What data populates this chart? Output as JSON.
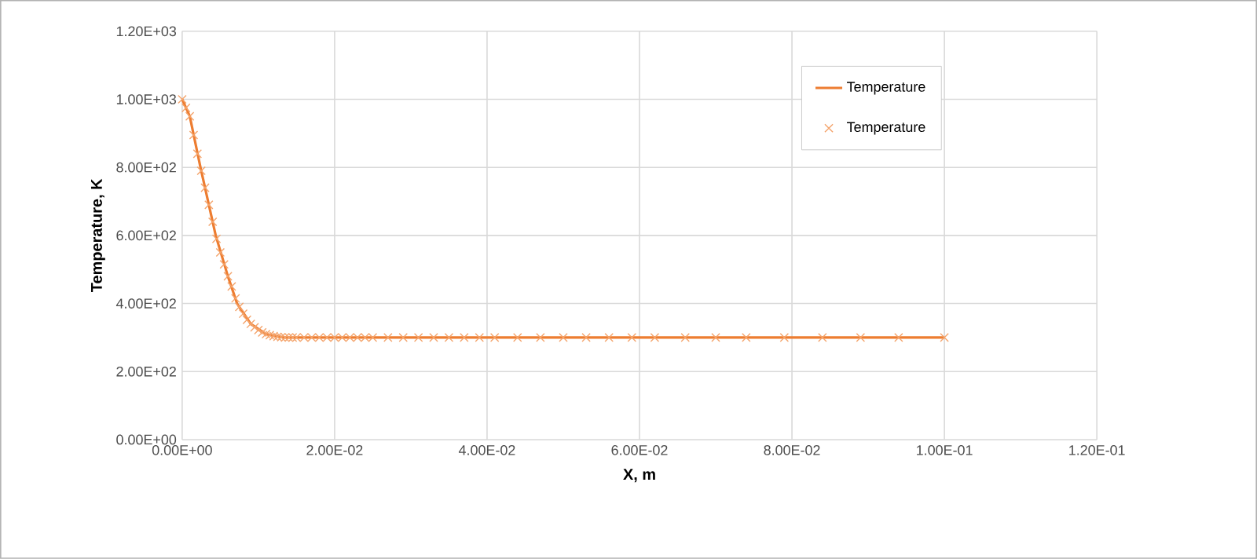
{
  "chart_data": {
    "type": "line",
    "xlabel": "X, m",
    "ylabel": "Temperature, K",
    "xlim": [
      0,
      0.12
    ],
    "ylim": [
      0,
      1200
    ],
    "xticks": [
      {
        "value": 0,
        "label": "0.00E+00"
      },
      {
        "value": 0.02,
        "label": "2.00E-02"
      },
      {
        "value": 0.04,
        "label": "4.00E-02"
      },
      {
        "value": 0.06,
        "label": "6.00E-02"
      },
      {
        "value": 0.08,
        "label": "8.00E-02"
      },
      {
        "value": 0.1,
        "label": "1.00E-01"
      },
      {
        "value": 0.12,
        "label": "1.20E-01"
      }
    ],
    "yticks": [
      {
        "value": 0,
        "label": "0.00E+00"
      },
      {
        "value": 200,
        "label": "2.00E+02"
      },
      {
        "value": 400,
        "label": "4.00E+02"
      },
      {
        "value": 600,
        "label": "6.00E+02"
      },
      {
        "value": 800,
        "label": "8.00E+02"
      },
      {
        "value": 1000,
        "label": "1.00E+03"
      },
      {
        "value": 1200,
        "label": "1.20E+03"
      }
    ],
    "grid": true,
    "legend": "top right",
    "series": [
      {
        "name": "Temperature",
        "type": "line",
        "color": "#ed7d31",
        "marker": "none",
        "x": [
          0,
          0.001,
          0.0024,
          0.0044,
          0.006,
          0.0072,
          0.009,
          0.011,
          0.0134,
          0.1
        ],
        "values": [
          1000,
          950,
          800,
          600,
          480,
          400,
          340,
          310,
          300,
          300
        ]
      },
      {
        "name": "Temperature",
        "type": "scatter",
        "color": "#f4a46c",
        "marker": "cross",
        "x": [
          0,
          0.0005,
          0.001,
          0.0015,
          0.002,
          0.0025,
          0.003,
          0.0035,
          0.004,
          0.0045,
          0.005,
          0.0055,
          0.006,
          0.0065,
          0.007,
          0.0075,
          0.008,
          0.0085,
          0.009,
          0.0095,
          0.01,
          0.0105,
          0.011,
          0.0115,
          0.012,
          0.0125,
          0.013,
          0.0135,
          0.014,
          0.0145,
          0.015,
          0.016,
          0.017,
          0.018,
          0.019,
          0.02,
          0.021,
          0.022,
          0.023,
          0.024,
          0.025,
          0.027,
          0.029,
          0.031,
          0.033,
          0.035,
          0.037,
          0.039,
          0.041,
          0.044,
          0.047,
          0.05,
          0.053,
          0.056,
          0.059,
          0.062,
          0.066,
          0.07,
          0.074,
          0.079,
          0.084,
          0.089,
          0.094,
          0.1
        ],
        "values": [
          1000,
          975,
          950,
          895,
          840,
          790,
          740,
          690,
          640,
          590,
          550,
          515,
          480,
          450,
          415,
          390,
          370,
          352,
          340,
          330,
          322,
          315,
          310,
          307,
          304,
          302,
          301,
          300,
          300,
          300,
          300,
          300,
          300,
          300,
          300,
          300,
          300,
          300,
          300,
          300,
          300,
          300,
          300,
          300,
          300,
          300,
          300,
          300,
          300,
          300,
          300,
          300,
          300,
          300,
          300,
          300,
          300,
          300,
          300,
          300,
          300,
          300,
          300,
          300
        ]
      }
    ]
  }
}
